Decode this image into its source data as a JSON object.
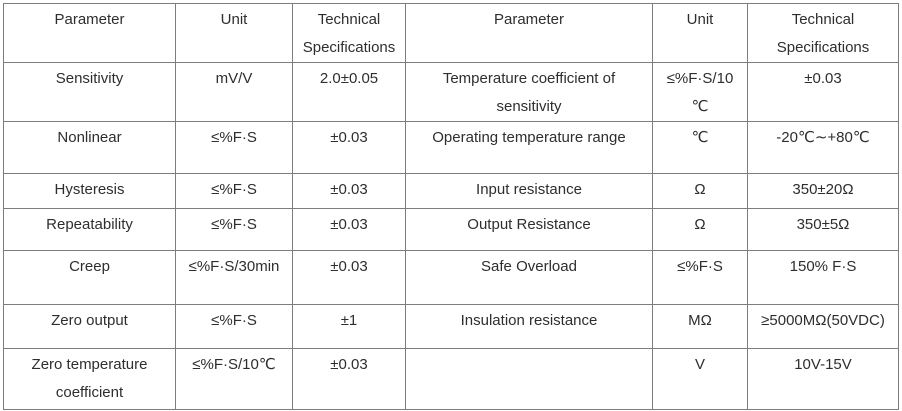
{
  "colors": {
    "background": "#ffffff",
    "border": "#7d7d7d",
    "text": "#2e2e2e"
  },
  "table": {
    "header": {
      "parameter_left": "Parameter",
      "unit_left": "Unit",
      "spec_left": "Technical Specifications",
      "parameter_right": "Parameter",
      "unit_right": "Unit",
      "spec_right": "Technical Specifications"
    },
    "rows": [
      {
        "param_l": "Sensitivity",
        "unit_l": "mV/V",
        "spec_l": "2.0±0.05",
        "param_r": "Temperature coefficient of sensitivity",
        "unit_r": "≤%F·S/10 ℃",
        "spec_r": "±0.03"
      },
      {
        "param_l": "Nonlinear",
        "unit_l": "≤%F·S",
        "spec_l": "±0.03",
        "param_r": "Operating temperature range",
        "unit_r": "℃",
        "spec_r": "-20℃∼+80℃"
      },
      {
        "param_l": "Hysteresis",
        "unit_l": "≤%F·S",
        "spec_l": "±0.03",
        "param_r": "Input resistance",
        "unit_r": "Ω",
        "spec_r": "350±20Ω"
      },
      {
        "param_l": "Repeatability",
        "unit_l": "≤%F·S",
        "spec_l": "±0.03",
        "param_r": "Output Resistance",
        "unit_r": "Ω",
        "spec_r": "350±5Ω"
      },
      {
        "param_l": "Creep",
        "unit_l": "≤%F·S/30min",
        "spec_l": "±0.03",
        "param_r": "Safe Overload",
        "unit_r": "≤%F·S",
        "spec_r": "150% F·S"
      },
      {
        "param_l": "Zero output",
        "unit_l": "≤%F·S",
        "spec_l": "±1",
        "param_r": "Insulation resistance",
        "unit_r": "MΩ",
        "spec_r": "≥5000MΩ(50VDC)"
      },
      {
        "param_l": "Zero temperature coefficient",
        "unit_l": "≤%F·S/10℃",
        "spec_l": "±0.03",
        "param_r": "",
        "unit_r": "V",
        "spec_r": "10V-15V"
      }
    ]
  }
}
